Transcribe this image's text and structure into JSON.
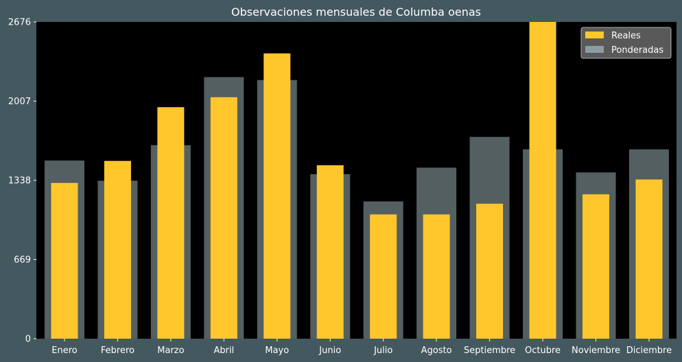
{
  "chart_data": {
    "type": "bar",
    "title": "Observaciones mensuales de Columba oenas",
    "categories": [
      "Enero",
      "Febrero",
      "Marzo",
      "Abril",
      "Mayo",
      "Junio",
      "Julio",
      "Agosto",
      "Septiembre",
      "Octubre",
      "Noviembre",
      "Diciembre"
    ],
    "series": [
      {
        "name": "Reales",
        "color": "#ffc72c",
        "values": [
          1316,
          1502,
          1956,
          2040,
          2410,
          1465,
          1050,
          1050,
          1140,
          2676,
          1220,
          1345
        ]
      },
      {
        "name": "Ponderadas",
        "color": "#8c9ea3",
        "values": [
          1505,
          1335,
          1635,
          2210,
          2185,
          1390,
          1160,
          1445,
          1705,
          1600,
          1405,
          1600
        ]
      }
    ],
    "yticks": [
      0,
      669,
      1338,
      2007,
      2676
    ],
    "ylim": [
      0,
      2676
    ],
    "legend_position": "top-right",
    "xlabel": "",
    "ylabel": ""
  }
}
